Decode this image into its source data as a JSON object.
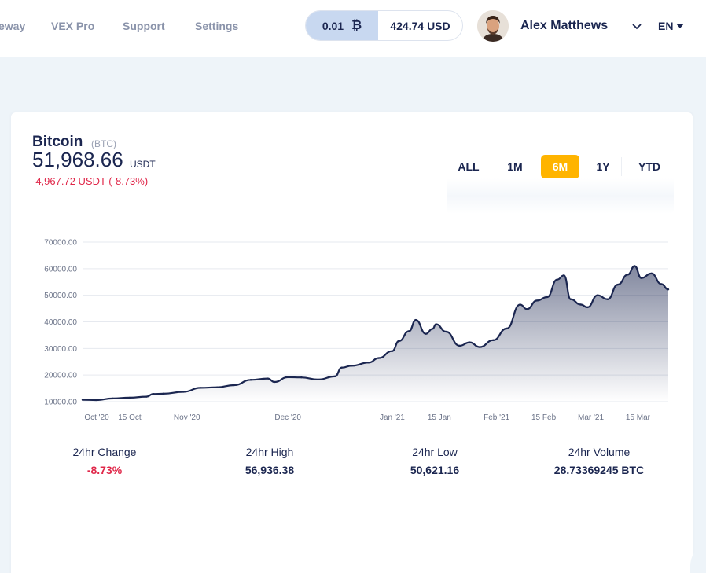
{
  "nav": {
    "items": [
      "eway",
      "VEX Pro",
      "Support",
      "Settings"
    ]
  },
  "wallet": {
    "btc_amount": "0.01",
    "btc_icon": "bitcoin-icon",
    "usd_amount": "424.74 USD"
  },
  "user": {
    "name": "Alex Matthews",
    "language": "EN"
  },
  "coin": {
    "name": "Bitcoin",
    "symbol": "(BTC)",
    "price": "51,968.66",
    "price_unit": "USDT",
    "change": "-4,967.72 USDT (-8.73%)"
  },
  "ranges": {
    "items": [
      "ALL",
      "1M",
      "6M",
      "1Y",
      "YTD"
    ],
    "active": "6M"
  },
  "colors": {
    "accent": "#ffb400",
    "line": "#1b2650",
    "negative": "#e0284a"
  },
  "chart_data": {
    "type": "area",
    "ylim": [
      10000,
      70000
    ],
    "yticks": [
      "70000.00",
      "60000.00",
      "50000.00",
      "40000.00",
      "30000.00",
      "20000.00",
      "10000.00"
    ],
    "xticks": [
      "Oct '20",
      "15 Oct",
      "Nov '20",
      "Dec '20",
      "Jan '21",
      "15 Jan",
      "Feb '21",
      "15 Feb",
      "Mar '21",
      "15 Mar"
    ],
    "grid": true,
    "series": [
      {
        "x": [
          "2020-10-01",
          "2020-10-05",
          "2020-10-10",
          "2020-10-15",
          "2020-10-20",
          "2020-10-22",
          "2020-10-25",
          "2020-10-31",
          "2020-11-05",
          "2020-11-10",
          "2020-11-15",
          "2020-11-20",
          "2020-11-25",
          "2020-11-27",
          "2020-12-01",
          "2020-12-05",
          "2020-12-10",
          "2020-12-15",
          "2020-12-17",
          "2020-12-20",
          "2020-12-25",
          "2020-12-28",
          "2021-01-01",
          "2021-01-03",
          "2021-01-06",
          "2021-01-08",
          "2021-01-11",
          "2021-01-13",
          "2021-01-14",
          "2021-01-17",
          "2021-01-21",
          "2021-01-24",
          "2021-01-27",
          "2021-01-31",
          "2021-02-04",
          "2021-02-08",
          "2021-02-10",
          "2021-02-13",
          "2021-02-16",
          "2021-02-19",
          "2021-02-21",
          "2021-02-23",
          "2021-02-26",
          "2021-02-28",
          "2021-03-03",
          "2021-03-06",
          "2021-03-09",
          "2021-03-12",
          "2021-03-14",
          "2021-03-16",
          "2021-03-19",
          "2021-03-22",
          "2021-03-24"
        ],
        "values": [
          10700,
          10600,
          11200,
          11500,
          11900,
          12900,
          13000,
          13700,
          15200,
          15400,
          16200,
          18200,
          18700,
          17400,
          19200,
          19100,
          18300,
          19500,
          22800,
          23500,
          24700,
          26400,
          29000,
          32800,
          36500,
          40700,
          35500,
          37400,
          39100,
          36300,
          31000,
          32300,
          30500,
          33100,
          37500,
          46500,
          44800,
          48000,
          49300,
          55900,
          57500,
          48500,
          46500,
          45500,
          50000,
          48500,
          54000,
          57800,
          61000,
          56500,
          58200,
          54200,
          52200
        ]
      }
    ]
  },
  "stats": [
    {
      "label": "24hr Change",
      "value": "-8.73%",
      "negative": true
    },
    {
      "label": "24hr High",
      "value": "56,936.38",
      "negative": false
    },
    {
      "label": "24hr Low",
      "value": "50,621.16",
      "negative": false
    },
    {
      "label": "24hr Volume",
      "value": "28.73369245 BTC",
      "negative": false
    }
  ]
}
